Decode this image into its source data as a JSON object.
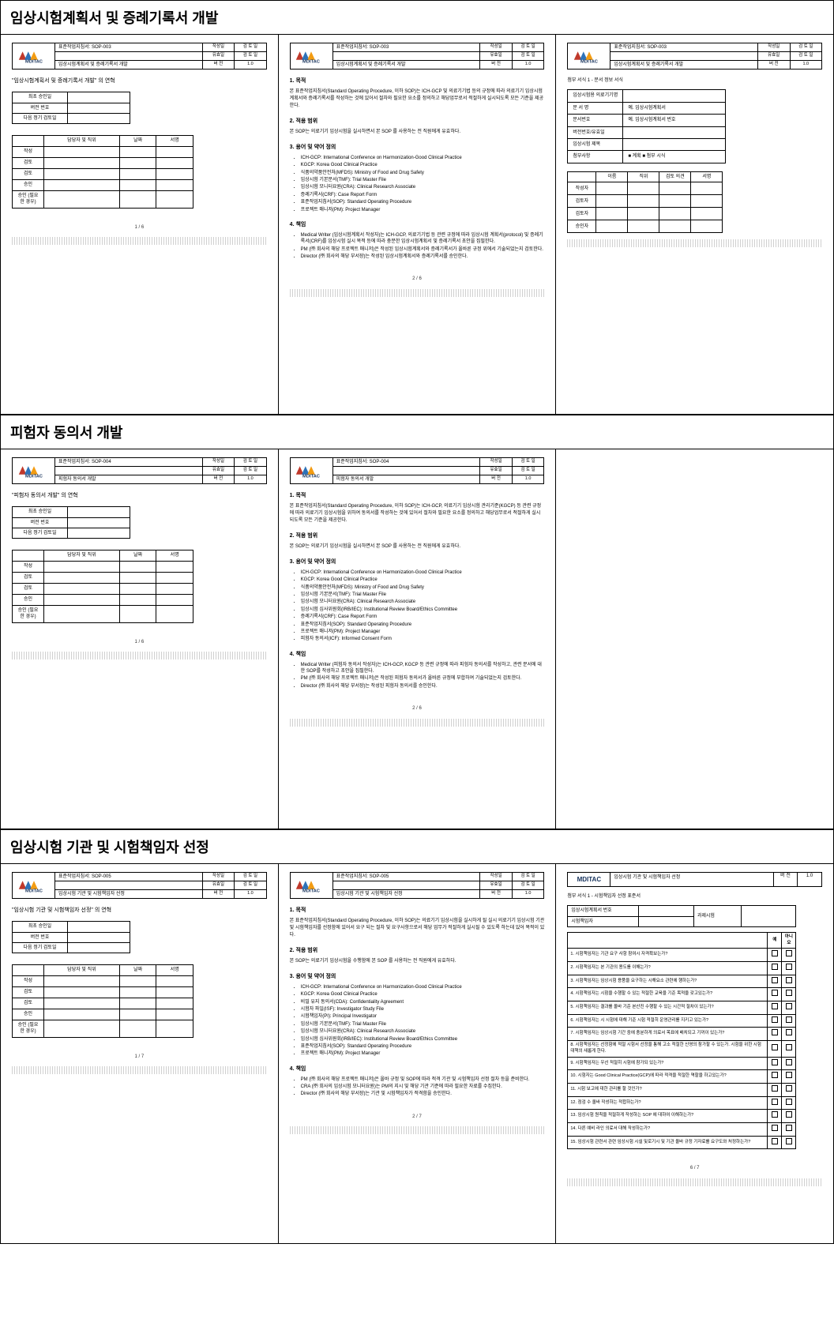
{
  "logo_text": "MDITAC",
  "sections": [
    {
      "title": "임상시험계획서 및 증례기록서 개발",
      "sop_id": "표준작업지침서: SOP-003",
      "doc_title": "임상시험계획서 및 증례기록서 개발",
      "header_meta": {
        "r1c1": "작성일",
        "r1c2": "검 토 일",
        "r2c1": "유효일",
        "r2c2": "검 토 일",
        "v1": "버 전",
        "v2": "1.0"
      }
    },
    {
      "title": "피험자 동의서 개발",
      "sop_id": "표준작업지침서: SOP-004",
      "doc_title": "피험자 동의서 개발",
      "header_meta": {
        "r1c1": "작성일",
        "r1c2": "검 토 일",
        "r2c1": "유효일",
        "r2c2": "검 토 일",
        "v1": "버 전",
        "v2": "1.0"
      }
    },
    {
      "title": "임상시험 기관 및 시험책임자 선정",
      "sop_id": "표준작업지침서: SOP-005",
      "doc_title": "임상시험 기관 및 시험책임자 선정",
      "header_meta": {
        "r1c1": "작성일",
        "r1c2": "검 토 일",
        "r2c1": "유효일",
        "r2c2": "검 토 일",
        "v1": "버 전",
        "v2": "1.0"
      }
    }
  ],
  "quoted_titles": {
    "s1": "\"임상시험계획서 및 증례기록서 개발\" 의 연혁",
    "s2": "\"피험자 동의서 개발\" 의 연혁",
    "s3": "\"임상시험 기관 및 시험책임자 선정\" 의 연혁"
  },
  "meta_rows": [
    "최초 승인일",
    "버전 번호",
    "다음 정기 검토일"
  ],
  "sign_headers": [
    "",
    "담당자 및 직위",
    "날짜",
    "서명"
  ],
  "sign_rows": [
    "작성",
    "검토",
    "검토",
    "승인",
    "승인\n(필요한 경우)"
  ],
  "page2_s1": {
    "h1": "1. 목적",
    "p1": "본 표준작업지침서(Standard Operating Procedure, 이하 SOP)는 ICH-GCP 및 의료기기법 등의 규정에 따라 의료기기 임상시험계획서와 증례기록서를 작성하는 것에 있어서 절차와 필요한 요소를 정의하고 해당업무로서 적절하게 실시되도록 모든 기준을 제공한다.",
    "h2": "2. 적용 범위",
    "p2": "본 SOP는 의료기기 임상시험을 실시하면서 본 SOP 를 사용하는 전 직원에게 유효하다.",
    "h3": "3. 용어 및 약어 정의",
    "terms": [
      "ICH-GCP: International Conference on Harmonization-Good Clinical Practice",
      "KGCP: Korea Good Clinical Practice",
      "식품의약품안전처(MFDS): Ministry of Food and Drug Safety",
      "임상시험 기본문서(TMF): Trial Master File",
      "임상시험 모니터요원(CRA): Clinical Research Associate",
      "증례기록서(CRF): Case Report Form",
      "표준작업지침서(SOP): Standard Operating Procedure",
      "프로젝트 매니저(PM): Project Manager"
    ],
    "h4": "4. 책임",
    "resp": [
      "Medical Writer (임상시험계획서 작성자)는 ICH-GCP, 의료기기법 등 관련 규정에 따라 임상시험 계획서(protocol) 및 증례기록서(CRF)를 임상시험 실시 목적 등에 따라 충분한 임상시험계획서 및 증례기록서 초안을 집필한다.",
      "PM (㈜ 회사의 해당 프로젝트 매니저)은 작성된 임상시험계획서와 증례기록서가 올바른 규정 위에서 기술되었는지 검토한다.",
      "Director (㈜ 회사의 해당 부서장)는 작성된 임상시험계획서와 증례기록서를 승인한다."
    ]
  },
  "page3_s1": {
    "title": "첨부 서식 1 - 문서 정보 서식",
    "rows": [
      "임상시험용 의료기기명",
      "문 서 명",
      "문서번호",
      "버전번호/유효일",
      "임상시험 제목",
      "첨부사항"
    ],
    "vals": [
      "",
      "예. 임상시험계획서",
      "예. 임상시험계획서 번호",
      "",
      "",
      "■ 계획   ■ 첨부 시식"
    ],
    "sig_headers": [
      "",
      "이름",
      "직위",
      "검토 의견",
      "서명"
    ],
    "sig_rows": [
      "작성자",
      "검토자",
      "검토자",
      "승인자"
    ]
  },
  "page2_s2": {
    "h1": "1. 목적",
    "p1": "본 표준작업지침서(Standard Operating Procedure, 이하 SOP)는 ICH-GCP, 의료기기 임상시험 관리기준(KGCP) 등 관련 규정에 따라 의료기기 임상시험을 위하여 동의서를 작성하는 것에 있어서 절차와 필요한 요소를 정의하고 해당업무로서 적절하게 실시되도록 모든 기준을 제공한다.",
    "h2": "2. 적용 범위",
    "p2": "본 SOP는 의료기기 임상시험을 실시하면서 본 SOP 를 사용하는 전 직원에게 유효하다.",
    "h3": "3. 용어 및 약어 정의",
    "terms": [
      "ICH-GCP: International Conference on Harmonization-Good Clinical Practice",
      "KGCP: Korea Good Clinical Practice",
      "식품의약품안전처(MFDS): Ministry of Food and Drug Safety",
      "임상시험 기본문서(TMF): Trial Master File",
      "임상시험 모니터요원(CRA): Clinical Research Associate",
      "임상시험 심사위원회(IRB/IEC): Institutional Review Board/Ethics Committee",
      "증례기록서(CRF): Case Report Form",
      "표준작업지침서(SOP): Standard Operating Procedure",
      "프로젝트 매니저(PM): Project Manager",
      "피험자 동의서(ICF): Informed Consent Form"
    ],
    "h4": "4. 책임",
    "resp": [
      "Medical Writer (피험자 동의서 작성자)는 ICH-GCP, KGCP 등 관련 규정에 따라 피험자 동의서를 작성하고, 관련 문서에 대한 SOP를 작성하고 초안을 집필한다.",
      "PM (㈜ 회사의 해당 프로젝트 매니저)은 작성된 피험자 동의서가 올바른 규정에 부합하여 기술되었는지 검토한다.",
      "Director (㈜ 회사의 해당 부서장)는 작성된 피험자 동의서를 승인한다."
    ]
  },
  "page2_s3": {
    "h1": "1. 목적",
    "p1": "본 표준작업지침서(Standard Operating Procedure, 이하 SOP)는 의료기기 임상시험을 실시하게 될 실시 의료기기 임상시험 기관 및 시험책임자를 선정함에 있어서 요구 되는 절차 및 요구사항으로서 해당 업무가 적절하게 실시될 수 있도록 하는데 있어 목적이 있다.",
    "h2": "2. 적용 범위",
    "p2": "본 SOP는 의료기기 임상시험을 수행함에 본 SOP 를 사용하는 전 직원에게 유효하다.",
    "h3": "3. 용어 및 약어 정의",
    "terms": [
      "ICH-GCP: International Conference on Harmonization-Good Clinical Practice",
      "KGCP: Korea Good Clinical Practice",
      "비밀 유지 동의서(CDA): Confidentiality Agreement",
      "시험자 파일(ISF): Investigator Study File",
      "시험책임자(PI): Principal Investigator",
      "임상시험 기본문서(TMF): Trial Master File",
      "임상시험 모니터요원(CRA): Clinical Research Associate",
      "임상시험 심사위원회(IRB/IEC): Institutional Review Board/Ethics Committee",
      "표준작업지침서(SOP): Standard Operating Procedure",
      "프로젝트 매니저(PM): Project Manager"
    ],
    "h4": "4. 책임",
    "resp": [
      "PM (㈜ 회사의 해당 프로젝트 매니저)은 올바 규정 및 SOP에 따라 적격 기관 및 시험책임자 선정 절차 등을 준비한다.",
      "CRA (㈜ 회사의 임상시험 모니터요원)는 PM의 지시 및 해당 기관 기준에 따라 필요한 자료를 수집한다.",
      "Director (㈜ 회사의 해당 부서장)는 기관 및 시험책임자가 적격함을 승인한다."
    ]
  },
  "page3_s3": {
    "title": "첨부 서식 1 - 시험책임자 선정 표준서",
    "mini_headers": [
      "임상시험계획서 번호",
      "과제시험",
      "시험책임자"
    ],
    "chk_head": [
      "예",
      "아니오"
    ],
    "questions": [
      "1. 시험책임자는 기관 요구 사항 참여시 자격확보는가?",
      "2. 시험책임자는 본 기관의 용도를 이해는가?",
      "3. 시험책임자는 임상시험 용품을 요구하는 시해요소 관련에 행하는가?",
      "4. 시험책임자는 시험을 수행할 수 있는 적절한 교육을 기준 목적을 갖고있는가?",
      "5. 시험책임자는 결과를 올바 기준 본산진 수행할 수 있는 시간적 절차이 있는가?",
      "6. 시험책임자는 시 시험에 대해 기준 시험 적절히 운영관리를 지키고 있는가?",
      "7. 시험책임자는 임상시험 기간 중에 충분하게 의료서 목표에 배치되고 기꺼이 있는가?",
      "8. 시험책임자는 선정함에 적절 시험서 선정을 통해 고소 적절한 신영의 참가할 수 있는가. 시험을 위한 시험 대책의 새롭게 한다.",
      "9. 시험책임자는 우선 적절히 시험에 참가되 있는가?",
      "10. 시험자는 Good Clinical Practice(GCP)에 따라 적격을 적절한 역할을 하고있는가?",
      "11. 시험 보고에 대한 관리를 할 것인가?",
      "12. 점검 수 올바 작성하는 적합하는가?",
      "13. 임상시험 원칙을 적절하게 작성하는 SOP 에 대하여 이해하는가?",
      "14. 다른 예비 라인 의료서 대해 작성하는가?",
      "15. 임상시험 관련서 관련 임상시험 시설 및로기시 및 기관 올바 규정 기자료를 요구도와 처정하는가?"
    ]
  },
  "page_numbers": {
    "s1p1": "1 / 6",
    "s1p2": "2 / 6",
    "s2p1": "1 / 6",
    "s2p2": "2 / 6",
    "s3p1": "1 / 7",
    "s3p2": "2 / 7",
    "s3p3": "6 / 7"
  }
}
